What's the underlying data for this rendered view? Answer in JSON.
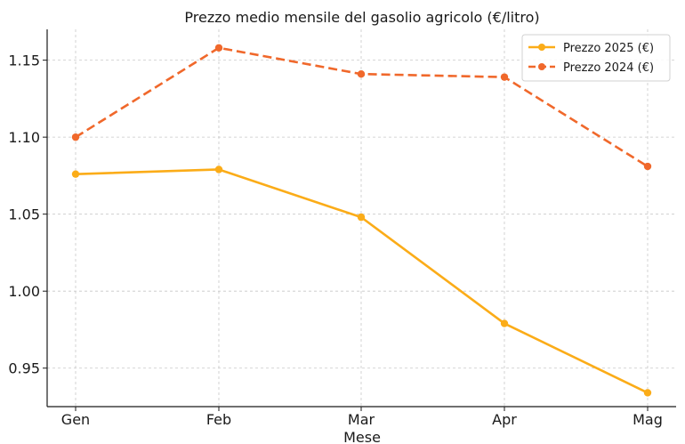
{
  "chart_data": {
    "type": "line",
    "title": "Prezzo medio mensile del gasolio agricolo (€/litro)",
    "xlabel": "Mese",
    "ylabel": "",
    "categories": [
      "Gen",
      "Feb",
      "Mar",
      "Apr",
      "Mag"
    ],
    "ylim": [
      0.925,
      1.17
    ],
    "yticks": [
      0.95,
      1.0,
      1.05,
      1.1,
      1.15
    ],
    "ytick_labels": [
      "0.95",
      "1.00",
      "1.05",
      "1.10",
      "1.15"
    ],
    "grid": true,
    "legend_position": "top-right",
    "series": [
      {
        "name": "Prezzo 2025 (€)",
        "values": [
          1.076,
          1.079,
          1.048,
          0.979,
          0.934
        ],
        "color": "#fbac18",
        "style": "solid"
      },
      {
        "name": "Prezzo 2024 (€)",
        "values": [
          1.1,
          1.158,
          1.141,
          1.139,
          1.081
        ],
        "color": "#f0682b",
        "style": "dashed"
      }
    ]
  }
}
